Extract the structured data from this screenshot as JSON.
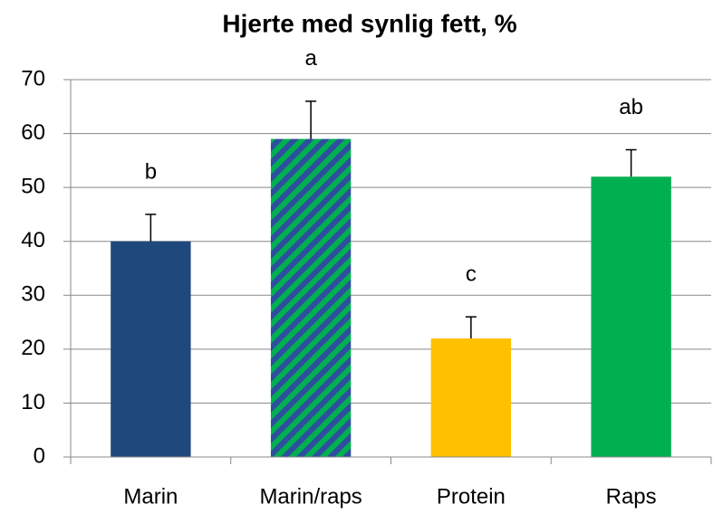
{
  "chart_data": {
    "type": "bar",
    "title": "Hjerte med synlig fett, %",
    "categories": [
      "Marin",
      "Marin/raps",
      "Protein",
      "Raps"
    ],
    "values": [
      40,
      59,
      22,
      52
    ],
    "errors": [
      5,
      7,
      4,
      5
    ],
    "annotations": [
      "b",
      "a",
      "c",
      "ab"
    ],
    "colors": [
      "#1f497d",
      "#00b050",
      "#ffc000",
      "#00b050"
    ],
    "hatch": [
      false,
      true,
      false,
      false
    ],
    "hatch_color": "#2e4e9e",
    "ylim": [
      0,
      70
    ],
    "yticks": [
      0,
      10,
      20,
      30,
      40,
      50,
      60,
      70
    ],
    "grid": true
  }
}
